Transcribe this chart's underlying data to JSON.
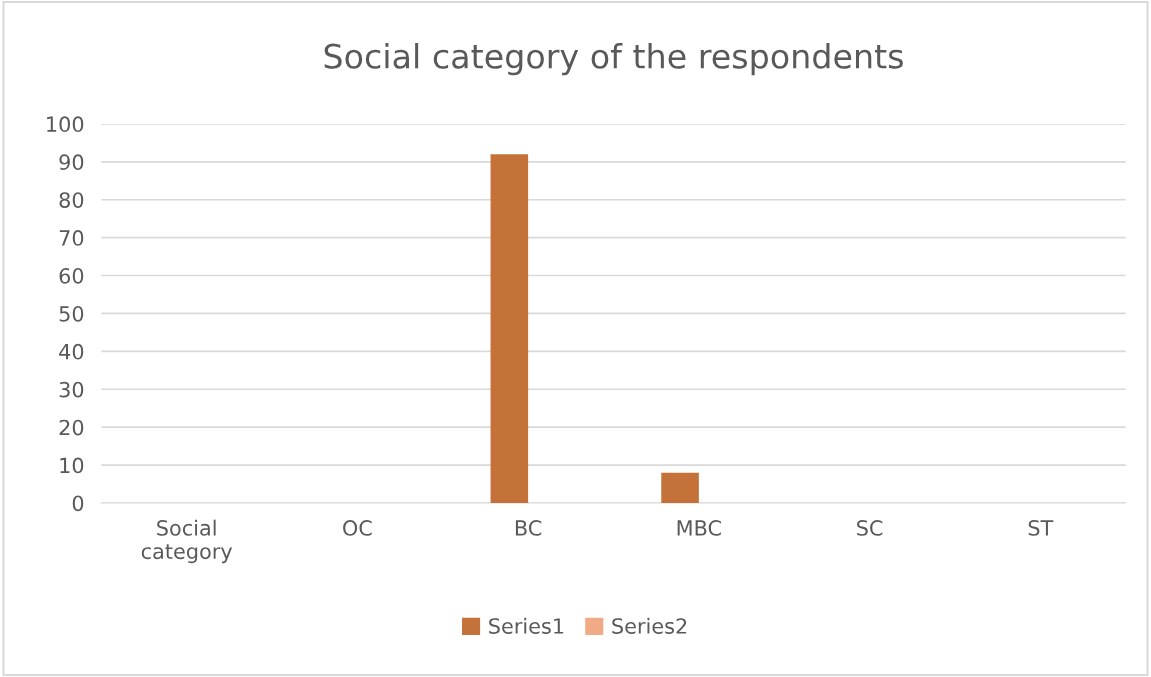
{
  "chart_data": {
    "type": "bar",
    "title": "Social category of the respondents",
    "categories": [
      "Social\ncategory",
      "OC",
      "BC",
      "MBC",
      "SC",
      "ST"
    ],
    "series": [
      {
        "name": "Series1",
        "color": "#c5713a",
        "values": [
          null,
          null,
          92,
          8,
          null,
          null
        ]
      },
      {
        "name": "Series2",
        "color": "#f0aa86",
        "values": [
          null,
          null,
          null,
          null,
          null,
          null
        ]
      }
    ],
    "ylim": [
      0,
      100
    ],
    "yticks": [
      0,
      10,
      20,
      30,
      40,
      50,
      60,
      70,
      80,
      90,
      100
    ],
    "grid": "y",
    "legend": "bottom"
  }
}
